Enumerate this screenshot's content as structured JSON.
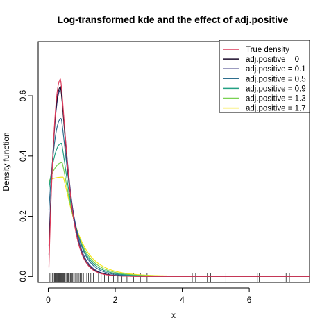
{
  "chart_data": {
    "type": "line",
    "title": "Log-transformed kde and the effect of adj.positive",
    "xlabel": "x",
    "ylabel": "Density function",
    "xlim": [
      -0.3,
      7.8
    ],
    "ylim": [
      -0.02,
      0.78
    ],
    "x_ticks": [
      "0",
      "2",
      "4",
      "6"
    ],
    "y_ticks": [
      "0.0",
      "0.2",
      "0.4",
      "0.6"
    ],
    "legend_position": "top-right",
    "grid": false,
    "series": [
      {
        "name": "True density",
        "color": "#dc3a5a",
        "peak": [
          0.37,
          0.655
        ],
        "x0": 0.02,
        "y0": 0.03
      },
      {
        "name": "adj.positive = 0",
        "color": "#1a0a2a",
        "peak": [
          0.37,
          0.63
        ],
        "x0": 0.02,
        "y0": 0.07
      },
      {
        "name": "adj.positive = 0.1",
        "color": "#3a3a80",
        "peak": [
          0.38,
          0.622
        ],
        "x0": 0.02,
        "y0": 0.1
      },
      {
        "name": "adj.positive = 0.5",
        "color": "#2e6e8e",
        "peak": [
          0.39,
          0.525
        ],
        "x0": 0.02,
        "y0": 0.22
      },
      {
        "name": "adj.positive = 0.9",
        "color": "#23a083",
        "peak": [
          0.4,
          0.442
        ],
        "x0": 0.02,
        "y0": 0.29
      },
      {
        "name": "adj.positive = 1.3",
        "color": "#7ad151",
        "peak": [
          0.42,
          0.378
        ],
        "x0": 0.02,
        "y0": 0.31
      },
      {
        "name": "adj.positive = 1.7",
        "color": "#f5e51a",
        "peak": [
          0.45,
          0.33
        ],
        "x0": 0.02,
        "y0": 0.32
      }
    ],
    "rug": [
      0.05,
      0.08,
      0.12,
      0.15,
      0.18,
      0.2,
      0.22,
      0.25,
      0.27,
      0.3,
      0.32,
      0.34,
      0.36,
      0.38,
      0.4,
      0.42,
      0.44,
      0.46,
      0.48,
      0.5,
      0.53,
      0.56,
      0.58,
      0.6,
      0.63,
      0.66,
      0.7,
      0.73,
      0.76,
      0.8,
      0.84,
      0.88,
      0.92,
      0.95,
      1.0,
      1.05,
      1.1,
      1.15,
      1.2,
      1.27,
      1.35,
      1.43,
      1.5,
      1.58,
      1.68,
      1.8,
      1.95,
      2.08,
      2.2,
      2.35,
      2.55,
      2.75,
      2.95,
      3.4,
      4.3,
      4.4,
      4.75,
      4.85,
      5.3,
      6.25,
      6.3,
      7.1,
      7.2
    ]
  }
}
